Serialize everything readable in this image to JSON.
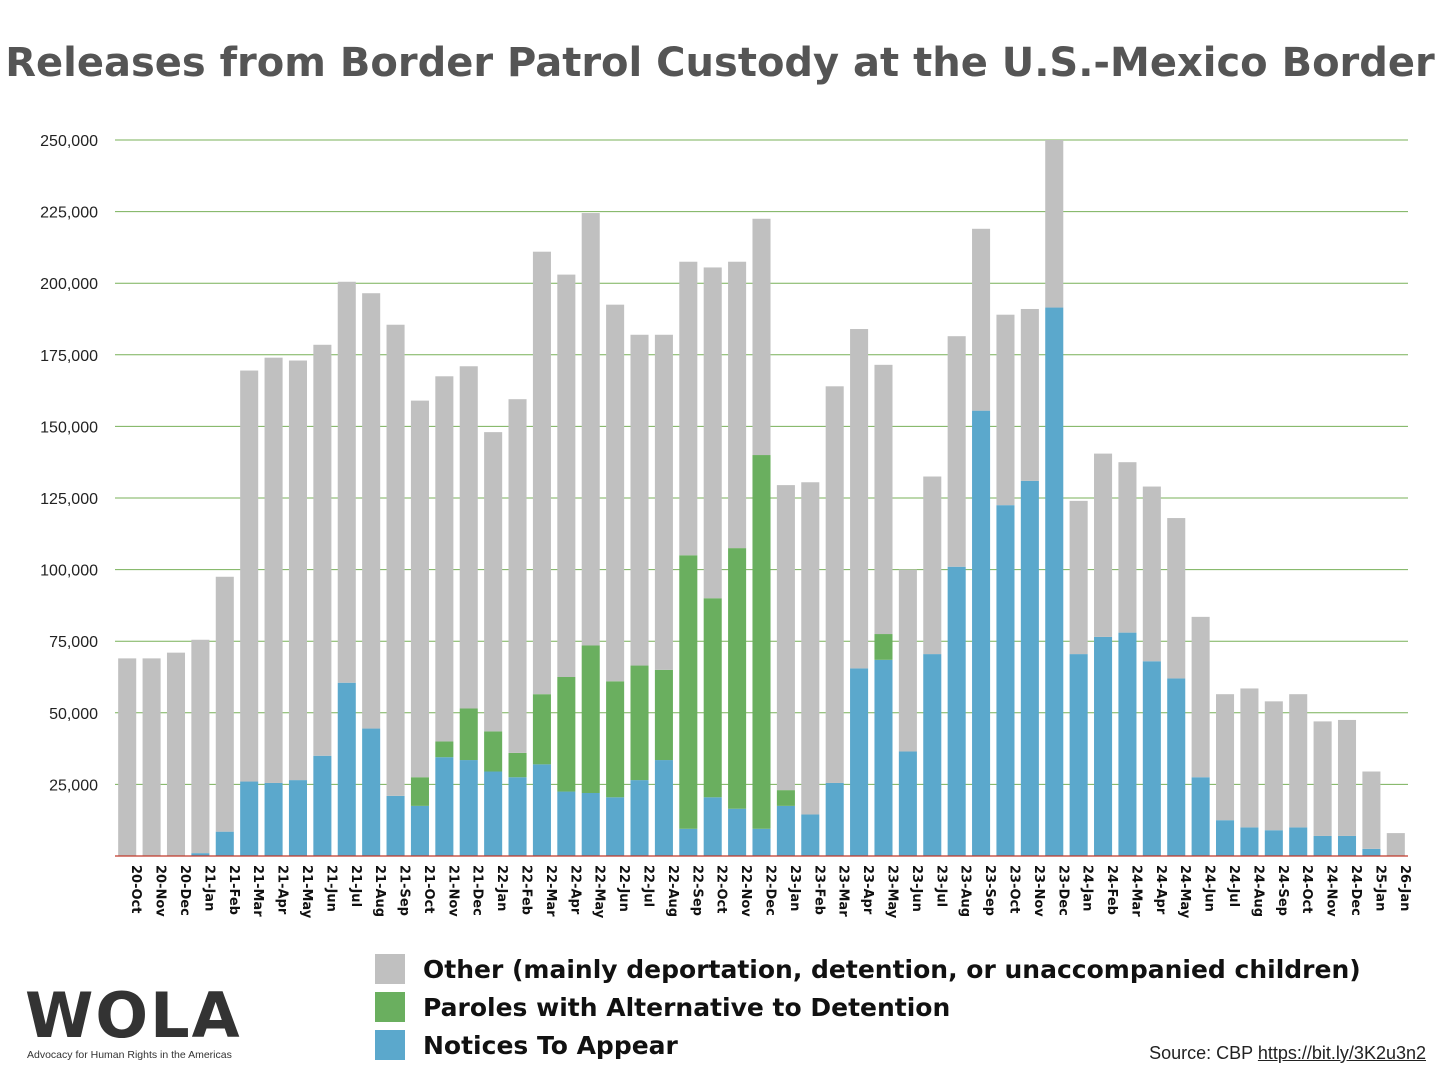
{
  "title": "Releases from Border Patrol Custody at the U.S.-Mexico Border",
  "legend": [
    {
      "label": "Other (mainly deportation, detention, or unaccompanied children)",
      "color": "#c0c0c0"
    },
    {
      "label": "Paroles with Alternative to Detention",
      "color": "#6aaf5f"
    },
    {
      "label": "Notices To Appear",
      "color": "#5ba8cc"
    }
  ],
  "source": {
    "prefix": "Source: CBP",
    "link": "https://bit.ly/3K2u3n2"
  },
  "logo": {
    "text": "WOLA",
    "tagline": "Advocacy for Human Rights in the Americas"
  },
  "colors": {
    "other": "#c0c0c0",
    "parole": "#6aaf5f",
    "nta": "#5ba8cc",
    "grid": "#78b159",
    "axis": "#c0392b"
  },
  "chart_data": {
    "type": "bar",
    "stacked": true,
    "title": "Releases from Border Patrol Custody at the U.S.-Mexico Border",
    "ylim": [
      0,
      250000
    ],
    "yticks": [
      "25,000",
      "50,000",
      "75,000",
      "100,000",
      "125,000",
      "150,000",
      "175,000",
      "200,000",
      "225,000",
      "250,000"
    ],
    "grid": true,
    "legend_position": "bottom",
    "categories": [
      "20-Oct",
      "20-Nov",
      "20-Dec",
      "21-Jan",
      "21-Feb",
      "21-Mar",
      "21-Apr",
      "21-May",
      "21-Jun",
      "21-Jul",
      "21-Aug",
      "21-Sep",
      "21-Oct",
      "21-Nov",
      "21-Dec",
      "22-Jan",
      "22-Feb",
      "22-Mar",
      "22-Apr",
      "22-May",
      "22-Jun",
      "22-Jul",
      "22-Aug",
      "22-Sep",
      "22-Oct",
      "22-Nov",
      "22-Dec",
      "23-Jan",
      "23-Feb",
      "23-Mar",
      "23-Apr",
      "23-May",
      "23-Jun",
      "23-Jul",
      "23-Aug",
      "23-Sep",
      "23-Oct",
      "23-Nov",
      "23-Dec",
      "24-Jan",
      "24-Feb",
      "24-Mar",
      "24-Apr",
      "24-May",
      "24-Jun",
      "24-Jul",
      "24-Aug",
      "24-Sep",
      "24-Oct",
      "24-Nov",
      "24-Dec",
      "25-Jan",
      "26-Jan"
    ],
    "series": [
      {
        "name": "Notices To Appear",
        "values": [
          0,
          0,
          0,
          1000,
          8500,
          26000,
          25500,
          26500,
          35000,
          60500,
          44500,
          21000,
          17500,
          34500,
          33500,
          29500,
          27500,
          32000,
          22500,
          22000,
          20500,
          26500,
          33500,
          9500,
          20500,
          16500,
          9500,
          17500,
          14500,
          25500,
          65500,
          68500,
          36500,
          70500,
          101000,
          155500,
          122500,
          131000,
          191500,
          70500,
          76500,
          78000,
          68000,
          62000,
          27500,
          12500,
          10000,
          9000,
          10000,
          7000,
          7000,
          2500,
          0
        ]
      },
      {
        "name": "Paroles with Alternative to Detention",
        "values": [
          0,
          0,
          0,
          0,
          0,
          0,
          0,
          0,
          0,
          0,
          0,
          0,
          10000,
          5500,
          18000,
          14000,
          8500,
          24500,
          40000,
          51500,
          40500,
          40000,
          31500,
          95500,
          69500,
          91000,
          130500,
          5500,
          0,
          0,
          0,
          9000,
          0,
          0,
          0,
          0,
          0,
          0,
          0,
          0,
          0,
          0,
          0,
          0,
          0,
          0,
          0,
          0,
          0,
          0,
          0,
          0,
          0
        ]
      },
      {
        "name": "Other (mainly deportation, detention, or unaccompanied children)",
        "values": [
          69000,
          69000,
          71000,
          74500,
          89000,
          143500,
          148500,
          146500,
          143500,
          140000,
          152000,
          164500,
          131500,
          127500,
          119500,
          104500,
          123500,
          154500,
          140500,
          151000,
          131500,
          115500,
          117000,
          102500,
          115500,
          100000,
          82500,
          106500,
          116000,
          138500,
          118500,
          94000,
          63500,
          62000,
          80500,
          63500,
          66500,
          60000,
          58500,
          53500,
          64000,
          59500,
          61000,
          56000,
          56000,
          44000,
          48500,
          45000,
          46500,
          40000,
          40500,
          27000,
          8000
        ]
      }
    ]
  }
}
